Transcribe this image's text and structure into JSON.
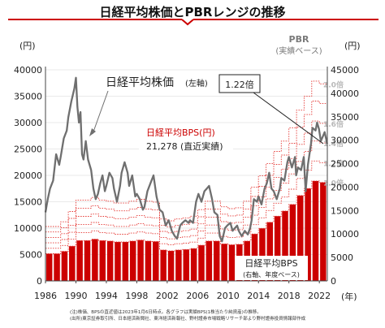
{
  "title": "日経平均株価とPBRレンジの推移",
  "colors": {
    "price": "#6f6f6f",
    "bps": "#cc0000",
    "band": "#e53935",
    "pbr": "#b9b9b9",
    "title": "#cc0000"
  },
  "axes": {
    "left_unit": "(円)",
    "right_unit": "(円)",
    "x_unit": "(年)",
    "left_ylim": [
      0,
      40000
    ],
    "right_ylim": [
      0,
      45000
    ],
    "left_ticks": [
      0,
      5000,
      10000,
      15000,
      20000,
      25000,
      30000,
      35000,
      40000
    ],
    "right_ticks": [
      0,
      5000,
      10000,
      15000,
      20000,
      25000,
      30000,
      35000,
      40000,
      45000
    ],
    "x_ticks": [
      "1986",
      "1990",
      "1994",
      "1998",
      "2002",
      "2006",
      "2010",
      "2014",
      "2018",
      "2022"
    ]
  },
  "labels": {
    "price_series": "日経平均株価",
    "price_axis": "(左軸)",
    "bps_box_title": "日経平均BPS(円)",
    "bps_box_value": "21,278",
    "bps_box_note": "(直近実績)",
    "callout": "1.22倍",
    "pbr_title": "PBR",
    "pbr_sub": "(実績ベース)",
    "bps_series": "日経平均BPS",
    "bps_series_sub": "(右軸、年度ベース)"
  },
  "notes": [
    "(注)株価、BPSの直近値は2023年1月6日時点。各グラフは実績BPS(1株当たり純資産)の推移。",
    "(出所)東京証券取引所、日本経済新聞社、東洋経済新報社、野村證券市場戦略リサーチ部より野村證券投資情報部作成"
  ],
  "chart_data": {
    "type": "bar+line",
    "x_range": [
      1986,
      2023.05
    ],
    "bps": {
      "name": "日経平均BPS",
      "axis": "right",
      "years": [
        1986,
        1987,
        1988,
        1989,
        1990,
        1991,
        1992,
        1993,
        1994,
        1995,
        1996,
        1997,
        1998,
        1999,
        2000,
        2001,
        2002,
        2003,
        2004,
        2005,
        2006,
        2007,
        2008,
        2009,
        2010,
        2011,
        2012,
        2013,
        2014,
        2015,
        2016,
        2017,
        2018,
        2019,
        2020,
        2021,
        2022
      ],
      "values": [
        5800,
        5800,
        6300,
        7400,
        8600,
        8600,
        8900,
        8600,
        8500,
        8300,
        8300,
        8500,
        8700,
        8500,
        8400,
        6600,
        6400,
        6600,
        6700,
        6900,
        7600,
        8500,
        8500,
        7900,
        7700,
        7800,
        8500,
        10000,
        11200,
        12500,
        13800,
        14900,
        16300,
        18200,
        19700,
        21300,
        21000
      ]
    },
    "pbr_lines": [
      {
        "multiple": 2.0,
        "label": "2.0倍"
      },
      {
        "multiple": 1.8,
        "label": ""
      },
      {
        "multiple": 1.6,
        "label": "1.6倍"
      },
      {
        "multiple": 1.4,
        "label": "1.4倍"
      },
      {
        "multiple": 1.2,
        "label": "1.2倍"
      },
      {
        "multiple": 1.0,
        "label": "1.0倍"
      }
    ],
    "price": {
      "name": "日経平均株価",
      "axis": "left",
      "points": [
        [
          1986.0,
          13000
        ],
        [
          1986.3,
          15500
        ],
        [
          1986.6,
          17500
        ],
        [
          1987.0,
          19000
        ],
        [
          1987.4,
          24000
        ],
        [
          1987.8,
          22000
        ],
        [
          1988.0,
          23500
        ],
        [
          1988.4,
          27000
        ],
        [
          1988.8,
          28500
        ],
        [
          1989.0,
          31000
        ],
        [
          1989.4,
          34000
        ],
        [
          1989.8,
          36500
        ],
        [
          1990.0,
          38500
        ],
        [
          1990.2,
          33000
        ],
        [
          1990.4,
          30000
        ],
        [
          1990.6,
          32000
        ],
        [
          1990.8,
          24000
        ],
        [
          1991.0,
          23000
        ],
        [
          1991.3,
          26500
        ],
        [
          1991.6,
          23000
        ],
        [
          1992.0,
          21000
        ],
        [
          1992.3,
          17500
        ],
        [
          1992.6,
          15500
        ],
        [
          1992.9,
          16500
        ],
        [
          1993.2,
          18500
        ],
        [
          1993.5,
          20000
        ],
        [
          1993.8,
          17000
        ],
        [
          1994.0,
          18000
        ],
        [
          1994.4,
          20500
        ],
        [
          1994.8,
          19500
        ],
        [
          1995.0,
          17500
        ],
        [
          1995.4,
          15000
        ],
        [
          1995.8,
          18000
        ],
        [
          1996.0,
          20500
        ],
        [
          1996.4,
          22500
        ],
        [
          1996.8,
          20500
        ],
        [
          1997.0,
          18000
        ],
        [
          1997.4,
          20000
        ],
        [
          1997.8,
          16000
        ],
        [
          1998.0,
          16500
        ],
        [
          1998.4,
          15500
        ],
        [
          1998.8,
          13500
        ],
        [
          1999.0,
          14000
        ],
        [
          1999.4,
          17000
        ],
        [
          1999.8,
          18500
        ],
        [
          2000.2,
          20000
        ],
        [
          2000.6,
          16000
        ],
        [
          2001.0,
          13500
        ],
        [
          2001.4,
          13000
        ],
        [
          2001.8,
          10500
        ],
        [
          2002.2,
          11500
        ],
        [
          2002.6,
          9500
        ],
        [
          2003.0,
          8500
        ],
        [
          2003.3,
          8000
        ],
        [
          2003.7,
          10500
        ],
        [
          2004.0,
          11000
        ],
        [
          2004.4,
          11500
        ],
        [
          2004.8,
          11000
        ],
        [
          2005.0,
          11500
        ],
        [
          2005.4,
          11000
        ],
        [
          2005.8,
          15000
        ],
        [
          2006.1,
          16500
        ],
        [
          2006.5,
          15000
        ],
        [
          2006.9,
          17000
        ],
        [
          2007.2,
          17500
        ],
        [
          2007.5,
          18000
        ],
        [
          2007.9,
          15500
        ],
        [
          2008.2,
          13000
        ],
        [
          2008.6,
          12500
        ],
        [
          2008.9,
          8500
        ],
        [
          2009.2,
          7500
        ],
        [
          2009.6,
          10000
        ],
        [
          2009.9,
          10500
        ],
        [
          2010.3,
          11000
        ],
        [
          2010.6,
          9500
        ],
        [
          2010.9,
          10000
        ],
        [
          2011.2,
          10500
        ],
        [
          2011.4,
          9500
        ],
        [
          2011.8,
          8500
        ],
        [
          2012.2,
          9500
        ],
        [
          2012.6,
          8800
        ],
        [
          2012.9,
          10000
        ],
        [
          2013.1,
          11500
        ],
        [
          2013.4,
          15500
        ],
        [
          2013.8,
          15000
        ],
        [
          2014.0,
          16000
        ],
        [
          2014.4,
          14500
        ],
        [
          2014.8,
          17500
        ],
        [
          2015.1,
          18500
        ],
        [
          2015.4,
          20500
        ],
        [
          2015.7,
          17500
        ],
        [
          2016.0,
          17000
        ],
        [
          2016.4,
          15500
        ],
        [
          2016.8,
          17500
        ],
        [
          2017.0,
          19500
        ],
        [
          2017.4,
          19000
        ],
        [
          2017.8,
          22500
        ],
        [
          2018.0,
          23500
        ],
        [
          2018.4,
          21500
        ],
        [
          2018.8,
          23500
        ],
        [
          2018.95,
          20000
        ],
        [
          2019.2,
          21500
        ],
        [
          2019.6,
          21000
        ],
        [
          2019.95,
          23500
        ],
        [
          2020.2,
          17000
        ],
        [
          2020.5,
          22000
        ],
        [
          2020.9,
          26000
        ],
        [
          2021.1,
          29000
        ],
        [
          2021.5,
          28500
        ],
        [
          2021.7,
          30000
        ],
        [
          2021.95,
          28800
        ],
        [
          2022.2,
          26500
        ],
        [
          2022.5,
          27500
        ],
        [
          2022.7,
          28200
        ],
        [
          2022.95,
          26500
        ],
        [
          2023.02,
          25973
        ]
      ]
    }
  }
}
